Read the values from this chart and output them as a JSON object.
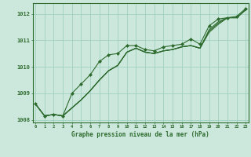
{
  "x": [
    0,
    1,
    2,
    3,
    4,
    5,
    6,
    7,
    8,
    9,
    10,
    11,
    12,
    13,
    14,
    15,
    16,
    17,
    18,
    19,
    20,
    21,
    22,
    23
  ],
  "series_marker": [
    1008.6,
    1008.15,
    1008.2,
    1008.15,
    1009.0,
    1009.35,
    1009.7,
    1010.2,
    1010.45,
    1010.5,
    1010.8,
    1010.8,
    1010.65,
    1010.6,
    1010.75,
    1010.8,
    1010.85,
    1011.05,
    1010.85,
    1011.55,
    1011.8,
    1011.85,
    1011.9,
    1012.2
  ],
  "series_line1": [
    1008.6,
    1008.15,
    1008.2,
    1008.15,
    1008.45,
    1008.75,
    1009.1,
    1009.5,
    1009.85,
    1010.05,
    1010.55,
    1010.7,
    1010.55,
    1010.5,
    1010.6,
    1010.65,
    1010.75,
    1010.8,
    1010.7,
    1011.3,
    1011.6,
    1011.85,
    1011.85,
    1012.15
  ],
  "series_line2": [
    1008.6,
    1008.15,
    1008.2,
    1008.15,
    1008.45,
    1008.75,
    1009.1,
    1009.5,
    1009.85,
    1010.05,
    1010.55,
    1010.7,
    1010.55,
    1010.5,
    1010.6,
    1010.65,
    1010.75,
    1010.8,
    1010.7,
    1011.35,
    1011.65,
    1011.85,
    1011.85,
    1012.15
  ],
  "series_line3": [
    1008.6,
    1008.15,
    1008.2,
    1008.15,
    1008.45,
    1008.75,
    1009.1,
    1009.5,
    1009.85,
    1010.05,
    1010.55,
    1010.7,
    1010.55,
    1010.5,
    1010.6,
    1010.65,
    1010.75,
    1010.8,
    1010.7,
    1011.4,
    1011.7,
    1011.85,
    1011.85,
    1012.15
  ],
  "line_color": "#2d6a2d",
  "bg_color": "#cce8dc",
  "grid_color": "#99ccbb",
  "xlabel": "Graphe pression niveau de la mer (hPa)",
  "ylim": [
    1007.9,
    1012.4
  ],
  "yticks": [
    1008,
    1009,
    1010,
    1011,
    1012
  ],
  "xticks": [
    0,
    1,
    2,
    3,
    4,
    5,
    6,
    7,
    8,
    9,
    10,
    11,
    12,
    13,
    14,
    15,
    16,
    17,
    18,
    19,
    20,
    21,
    22,
    23
  ]
}
